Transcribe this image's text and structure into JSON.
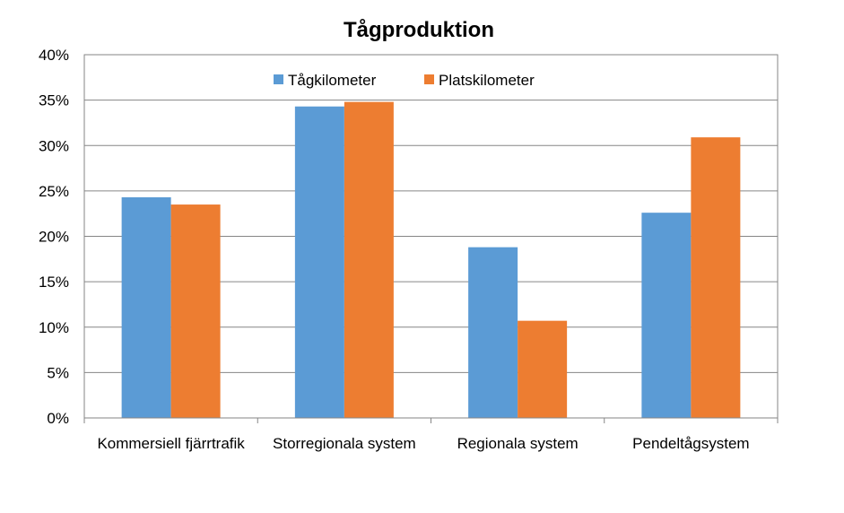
{
  "chart_data": {
    "type": "bar",
    "title": "Tågproduktion",
    "xlabel": "",
    "ylabel": "",
    "categories": [
      "Kommersiell fjärrtrafik",
      "Storregionala system",
      "Regionala system",
      "Pendeltågsystem"
    ],
    "series": [
      {
        "name": "Tågkilometer",
        "values": [
          24.3,
          34.3,
          18.8,
          22.6
        ],
        "color": "#5B9BD5"
      },
      {
        "name": "Platskilometer",
        "values": [
          23.5,
          34.8,
          10.7,
          30.9
        ],
        "color": "#ED7D31"
      }
    ],
    "ylim": [
      0,
      40
    ],
    "yticks": [
      0,
      5,
      10,
      15,
      20,
      25,
      30,
      35,
      40
    ],
    "ytick_labels": [
      "0%",
      "5%",
      "10%",
      "15%",
      "20%",
      "25%",
      "30%",
      "35%",
      "40%"
    ],
    "unit": "%",
    "grid": true,
    "legend_position": "top"
  }
}
